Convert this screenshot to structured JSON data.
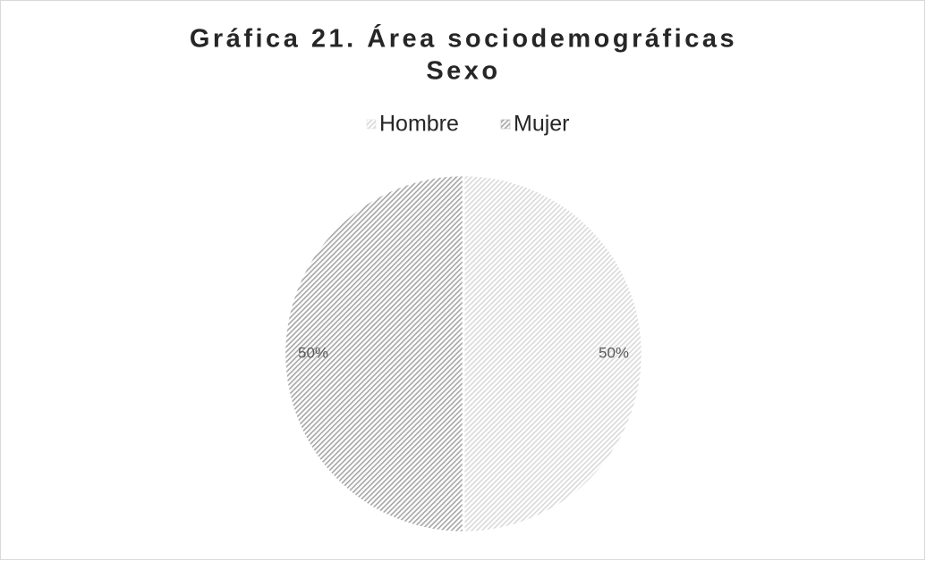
{
  "chart_data": {
    "type": "pie",
    "title": "Gráfica 21. Área sociodemográficas",
    "subtitle": "Sexo",
    "categories": [
      "Hombre",
      "Mujer"
    ],
    "values": [
      50,
      50
    ],
    "value_labels": [
      "50%",
      "50%"
    ],
    "colors": [
      "#d9d9d9",
      "#a6a6a6"
    ],
    "legend": "top"
  }
}
